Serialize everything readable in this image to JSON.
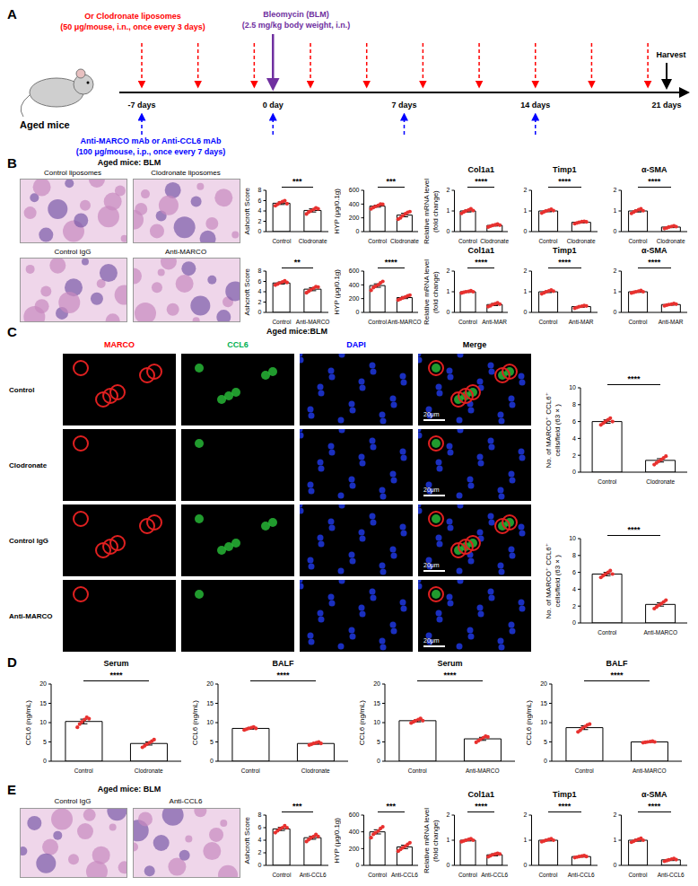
{
  "figure": {
    "panel_labels": [
      "A",
      "B",
      "C",
      "D",
      "E"
    ],
    "timeline": {
      "subject": "Aged mice",
      "ticks": [
        {
          "value": -7,
          "label": "-7 days"
        },
        {
          "value": 0,
          "label": "0 day"
        },
        {
          "value": 7,
          "label": "7 days"
        },
        {
          "value": 14,
          "label": "14 days"
        },
        {
          "value": 21,
          "label": "21 days"
        }
      ],
      "liposomes": {
        "text": [
          "Or Clodronate liposomes",
          "(50 μg/mouse, i.n., once every 3 days)"
        ],
        "color": "#ff0000",
        "days": [
          -7,
          -4,
          -1,
          2,
          5,
          8,
          11,
          14,
          17,
          20
        ]
      },
      "bleomycin": {
        "text": [
          "Bleomycin (BLM)",
          "(2.5 mg/kg body weight, i.n.)"
        ],
        "color": "#7030a0",
        "days": [
          0
        ]
      },
      "antibodies": {
        "text": [
          "Anti-MARCO mAb or Anti-CCL6 mAb",
          "(100 μg/mouse, i.p., once every 7 days)"
        ],
        "color": "#0000ff",
        "days": [
          -7,
          0,
          7,
          14
        ]
      },
      "harvest": {
        "text": "Harvest",
        "days": [
          21
        ]
      }
    },
    "panel_b": {
      "title": "Aged mice: BLM",
      "images": [
        [
          "Control liposomes",
          "Clodronate liposomes"
        ],
        [
          "Control IgG",
          "Anti-MARCO"
        ]
      ]
    },
    "panel_c": {
      "title": "Aged mice:BLM",
      "columns": [
        {
          "text": "MARCO",
          "color": "#ff0000"
        },
        {
          "text": "CCL6",
          "color": "#00b050"
        },
        {
          "text": "DAPI",
          "color": "#0000ff"
        },
        {
          "text": "Merge",
          "color": "#000000"
        }
      ],
      "rows": [
        "Control",
        "Clodronate",
        "Control IgG",
        "Anti-MARCO"
      ],
      "scale_bar": "20μm"
    },
    "panel_e": {
      "title": "Aged mice: BLM",
      "images": [
        [
          "Control IgG",
          "Anti-CCL6"
        ]
      ]
    }
  },
  "chart_data": [
    {
      "type": "bar",
      "ylabel": [
        "Ashcroft Score"
      ],
      "categories": [
        "Control",
        "Clodronate"
      ],
      "values": [
        5.5,
        4.1
      ],
      "errors": [
        0.25,
        0.3
      ],
      "points": [
        [
          5.0,
          5.3,
          5.6,
          5.8,
          6.0,
          5.4
        ],
        [
          3.4,
          3.8,
          4.0,
          4.3,
          4.6,
          4.4
        ]
      ],
      "ylim": [
        0,
        8
      ],
      "yticks": [
        0,
        2,
        4,
        6,
        8
      ],
      "annotation": "***",
      "color": "#e8312f"
    },
    {
      "type": "bar",
      "ylabel": [
        "HYP (μg/0.1g)"
      ],
      "categories": [
        "Control",
        "Clodronate"
      ],
      "values": [
        370,
        240
      ],
      "errors": [
        15,
        25
      ],
      "points": [
        [
          330,
          350,
          365,
          380,
          400,
          395
        ],
        [
          180,
          200,
          230,
          260,
          280,
          290
        ]
      ],
      "ylim": [
        0,
        600
      ],
      "yticks": [
        0,
        200,
        400,
        600
      ],
      "annotation": "***",
      "color": "#e8312f"
    },
    {
      "type": "bar",
      "title": "Col1a1",
      "ylabel": [
        "Relative mRNA level",
        "(fold change)"
      ],
      "categories": [
        "Control",
        "Clodronate"
      ],
      "values": [
        1.0,
        0.3
      ],
      "errors": [
        0.05,
        0.03
      ],
      "points": [
        [
          0.88,
          0.95,
          1.0,
          1.05,
          1.1,
          1.02
        ],
        [
          0.22,
          0.26,
          0.3,
          0.33,
          0.36,
          0.31
        ]
      ],
      "ylim": [
        0,
        2
      ],
      "yticks": [
        0,
        1,
        2
      ],
      "annotation": "****",
      "color": "#e8312f"
    },
    {
      "type": "bar",
      "title": "Timp1",
      "ylabel": [],
      "categories": [
        "Control",
        "Clodronate"
      ],
      "values": [
        1.0,
        0.45
      ],
      "errors": [
        0.04,
        0.03
      ],
      "points": [
        [
          0.9,
          0.96,
          1.0,
          1.04,
          1.08,
          1.02
        ],
        [
          0.38,
          0.42,
          0.45,
          0.48,
          0.5,
          0.47
        ]
      ],
      "ylim": [
        0,
        2
      ],
      "yticks": [
        0,
        1,
        2
      ],
      "annotation": "****",
      "color": "#e8312f"
    },
    {
      "type": "bar",
      "title": "α-SMA",
      "ylabel": [],
      "categories": [
        "Control",
        "Clodronate"
      ],
      "values": [
        1.0,
        0.22
      ],
      "errors": [
        0.05,
        0.03
      ],
      "points": [
        [
          0.88,
          0.95,
          1.0,
          1.06,
          1.1,
          1.01
        ],
        [
          0.15,
          0.18,
          0.22,
          0.25,
          0.28,
          0.24
        ]
      ],
      "ylim": [
        0,
        2
      ],
      "yticks": [
        0,
        1,
        2
      ],
      "annotation": "****",
      "color": "#e8312f"
    },
    {
      "type": "bar",
      "ylabel": [
        "Ashcroft Score"
      ],
      "categories": [
        "Control",
        "Anti-MARCO"
      ],
      "values": [
        5.7,
        4.5
      ],
      "errors": [
        0.2,
        0.3
      ],
      "points": [
        [
          5.3,
          5.5,
          5.7,
          5.9,
          6.1,
          5.8
        ],
        [
          3.8,
          4.1,
          4.4,
          4.7,
          5.0,
          4.9
        ]
      ],
      "ylim": [
        0,
        8
      ],
      "yticks": [
        0,
        2,
        4,
        6,
        8
      ],
      "annotation": "**",
      "color": "#e8312f"
    },
    {
      "type": "bar",
      "ylabel": [
        "HYP (μg/0.1g)"
      ],
      "categories": [
        "Control",
        "Anti-MARCO"
      ],
      "values": [
        390,
        215
      ],
      "errors": [
        25,
        15
      ],
      "points": [
        [
          320,
          360,
          380,
          400,
          430,
          450
        ],
        [
          180,
          195,
          210,
          225,
          240,
          250
        ]
      ],
      "ylim": [
        0,
        600
      ],
      "yticks": [
        0,
        200,
        400,
        600
      ],
      "annotation": "****",
      "color": "#e8312f"
    },
    {
      "type": "bar",
      "title": "Col1a1",
      "ylabel": [
        "Relative mRNA level",
        "(fold change)"
      ],
      "categories": [
        "Control",
        "Anti-MAR"
      ],
      "values": [
        1.0,
        0.38
      ],
      "errors": [
        0.03,
        0.05
      ],
      "points": [
        [
          0.94,
          0.97,
          1.0,
          1.02,
          1.05,
          1.0
        ],
        [
          0.28,
          0.32,
          0.38,
          0.42,
          0.46,
          0.4
        ]
      ],
      "ylim": [
        0,
        2
      ],
      "yticks": [
        0,
        1,
        2
      ],
      "annotation": "****",
      "color": "#e8312f"
    },
    {
      "type": "bar",
      "title": "Timp1",
      "ylabel": [],
      "categories": [
        "Control",
        "Anti-MAR"
      ],
      "values": [
        1.0,
        0.28
      ],
      "errors": [
        0.04,
        0.03
      ],
      "points": [
        [
          0.9,
          0.95,
          1.0,
          1.04,
          1.08,
          1.03
        ],
        [
          0.2,
          0.24,
          0.28,
          0.3,
          0.33,
          0.31
        ]
      ],
      "ylim": [
        0,
        2
      ],
      "yticks": [
        0,
        1,
        2
      ],
      "annotation": "****",
      "color": "#e8312f"
    },
    {
      "type": "bar",
      "title": "α-SMA",
      "ylabel": [],
      "categories": [
        "Control",
        "Anti-MAR"
      ],
      "values": [
        1.0,
        0.38
      ],
      "errors": [
        0.03,
        0.03
      ],
      "points": [
        [
          0.94,
          0.97,
          1.0,
          1.03,
          1.06,
          1.0
        ],
        [
          0.32,
          0.35,
          0.38,
          0.4,
          0.43,
          0.4
        ]
      ],
      "ylim": [
        0,
        2
      ],
      "yticks": [
        0,
        1,
        2
      ],
      "annotation": "****",
      "color": "#e8312f"
    },
    {
      "type": "bar",
      "ylabel": [
        "No. of MARCO⁺ CCL6⁺",
        "cells/field (63×)"
      ],
      "categories": [
        "Control",
        "Clodronate"
      ],
      "values": [
        6.0,
        1.4
      ],
      "errors": [
        0.2,
        0.2
      ],
      "points": [
        [
          5.6,
          5.8,
          6.0,
          6.2,
          6.4,
          6.0
        ],
        [
          0.9,
          1.1,
          1.3,
          1.5,
          1.7,
          1.9
        ]
      ],
      "ylim": [
        0,
        10
      ],
      "yticks": [
        0,
        2,
        4,
        6,
        8,
        10
      ],
      "annotation": "****",
      "color": "#e8312f"
    },
    {
      "type": "bar",
      "ylabel": [
        "No. of MARCO⁺ CCL6⁺",
        "cells/field (63×)"
      ],
      "categories": [
        "Control",
        "Anti-MARCO"
      ],
      "values": [
        5.8,
        2.2
      ],
      "errors": [
        0.2,
        0.2
      ],
      "points": [
        [
          5.4,
          5.6,
          5.8,
          6.0,
          6.2,
          5.8
        ],
        [
          1.7,
          1.9,
          2.1,
          2.3,
          2.5,
          2.7
        ]
      ],
      "ylim": [
        0,
        10
      ],
      "yticks": [
        0,
        2,
        4,
        6,
        8,
        10
      ],
      "annotation": "****",
      "color": "#e8312f"
    },
    {
      "type": "bar",
      "title": "Serum",
      "ylabel": [
        "CCL6 (ng/mL)"
      ],
      "categories": [
        "Control",
        "Clodronate"
      ],
      "values": [
        10.3,
        4.6
      ],
      "errors": [
        0.6,
        0.4
      ],
      "points": [
        [
          8.8,
          9.6,
          10.2,
          10.8,
          11.4,
          11.0
        ],
        [
          3.6,
          4.0,
          4.4,
          4.8,
          5.2,
          5.6
        ]
      ],
      "ylim": [
        0,
        20
      ],
      "yticks": [
        0,
        5,
        10,
        15,
        20
      ],
      "annotation": "****",
      "color": "#e8312f"
    },
    {
      "type": "bar",
      "title": "BALF",
      "ylabel": [
        "CCL6 (ng/mL)"
      ],
      "categories": [
        "Control",
        "Clodronate"
      ],
      "values": [
        8.5,
        4.6
      ],
      "errors": [
        0.2,
        0.2
      ],
      "points": [
        [
          8.1,
          8.3,
          8.5,
          8.7,
          8.9,
          8.5
        ],
        [
          4.2,
          4.4,
          4.6,
          4.8,
          5.0,
          4.6
        ]
      ],
      "ylim": [
        0,
        20
      ],
      "yticks": [
        0,
        5,
        10,
        15,
        20
      ],
      "annotation": "****",
      "color": "#e8312f"
    },
    {
      "type": "bar",
      "title": "Serum",
      "ylabel": [
        "CCL6 (ng/mL)"
      ],
      "categories": [
        "Control",
        "Anti-MARCO"
      ],
      "values": [
        10.5,
        5.8
      ],
      "errors": [
        0.3,
        0.4
      ],
      "points": [
        [
          9.9,
          10.2,
          10.5,
          10.8,
          11.1,
          10.5
        ],
        [
          4.9,
          5.3,
          5.7,
          6.1,
          6.5,
          6.3
        ]
      ],
      "ylim": [
        0,
        20
      ],
      "yticks": [
        0,
        5,
        10,
        15,
        20
      ],
      "annotation": "****",
      "color": "#e8312f"
    },
    {
      "type": "bar",
      "title": "BALF",
      "ylabel": [
        "CCL6 (ng/mL)"
      ],
      "categories": [
        "Control",
        "Anti-MARCO"
      ],
      "values": [
        8.7,
        5.0
      ],
      "errors": [
        0.5,
        0.1
      ],
      "points": [
        [
          7.6,
          8.0,
          8.6,
          9.0,
          9.4,
          9.6
        ],
        [
          4.8,
          4.9,
          5.0,
          5.1,
          5.2,
          5.0
        ]
      ],
      "ylim": [
        0,
        20
      ],
      "yticks": [
        0,
        5,
        10,
        15,
        20
      ],
      "annotation": "****",
      "color": "#e8312f"
    },
    {
      "type": "bar",
      "ylabel": [
        "Ashcroft Score"
      ],
      "categories": [
        "Control",
        "Anti-CCL6"
      ],
      "values": [
        5.8,
        4.4
      ],
      "errors": [
        0.25,
        0.25
      ],
      "points": [
        [
          5.2,
          5.5,
          5.8,
          6.0,
          6.3,
          6.0
        ],
        [
          3.8,
          4.1,
          4.4,
          4.6,
          4.9,
          4.6
        ]
      ],
      "ylim": [
        0,
        8
      ],
      "yticks": [
        0,
        2,
        4,
        6,
        8
      ],
      "annotation": "***",
      "color": "#e8312f"
    },
    {
      "type": "bar",
      "ylabel": [
        "HYP (μg/0.1g)"
      ],
      "categories": [
        "Control",
        "Anti-CCL6"
      ],
      "values": [
        400,
        220
      ],
      "errors": [
        25,
        20
      ],
      "points": [
        [
          330,
          370,
          390,
          410,
          440,
          460
        ],
        [
          170,
          190,
          210,
          230,
          250,
          270
        ]
      ],
      "ylim": [
        0,
        600
      ],
      "yticks": [
        0,
        200,
        400,
        600
      ],
      "annotation": "***",
      "color": "#e8312f"
    },
    {
      "type": "bar",
      "title": "Col1a1",
      "ylabel": [
        "Relative mRNA level",
        "(fold change)"
      ],
      "categories": [
        "Control",
        "Anti-CCL6"
      ],
      "values": [
        1.0,
        0.42
      ],
      "errors": [
        0.03,
        0.04
      ],
      "points": [
        [
          0.94,
          0.97,
          1.0,
          1.03,
          1.06,
          1.0
        ],
        [
          0.34,
          0.38,
          0.42,
          0.45,
          0.48,
          0.45
        ]
      ],
      "ylim": [
        0,
        2
      ],
      "yticks": [
        0,
        1,
        2
      ],
      "annotation": "****",
      "color": "#e8312f"
    },
    {
      "type": "bar",
      "title": "Timp1",
      "ylabel": [],
      "categories": [
        "Control",
        "Anti-CCL6"
      ],
      "values": [
        1.0,
        0.35
      ],
      "errors": [
        0.03,
        0.02
      ],
      "points": [
        [
          0.94,
          0.97,
          1.0,
          1.03,
          1.06,
          1.0
        ],
        [
          0.31,
          0.33,
          0.35,
          0.37,
          0.39,
          0.35
        ]
      ],
      "ylim": [
        0,
        2
      ],
      "yticks": [
        0,
        1,
        2
      ],
      "annotation": "****",
      "color": "#e8312f"
    },
    {
      "type": "bar",
      "title": "α-SMA",
      "ylabel": [],
      "categories": [
        "Control",
        "Anti-CCL6"
      ],
      "values": [
        1.0,
        0.22
      ],
      "errors": [
        0.04,
        0.03
      ],
      "points": [
        [
          0.92,
          0.96,
          1.0,
          1.04,
          1.08,
          1.0
        ],
        [
          0.16,
          0.19,
          0.22,
          0.25,
          0.27,
          0.23
        ]
      ],
      "ylim": [
        0,
        2
      ],
      "yticks": [
        0,
        1,
        2
      ],
      "annotation": "****",
      "color": "#e8312f"
    }
  ]
}
